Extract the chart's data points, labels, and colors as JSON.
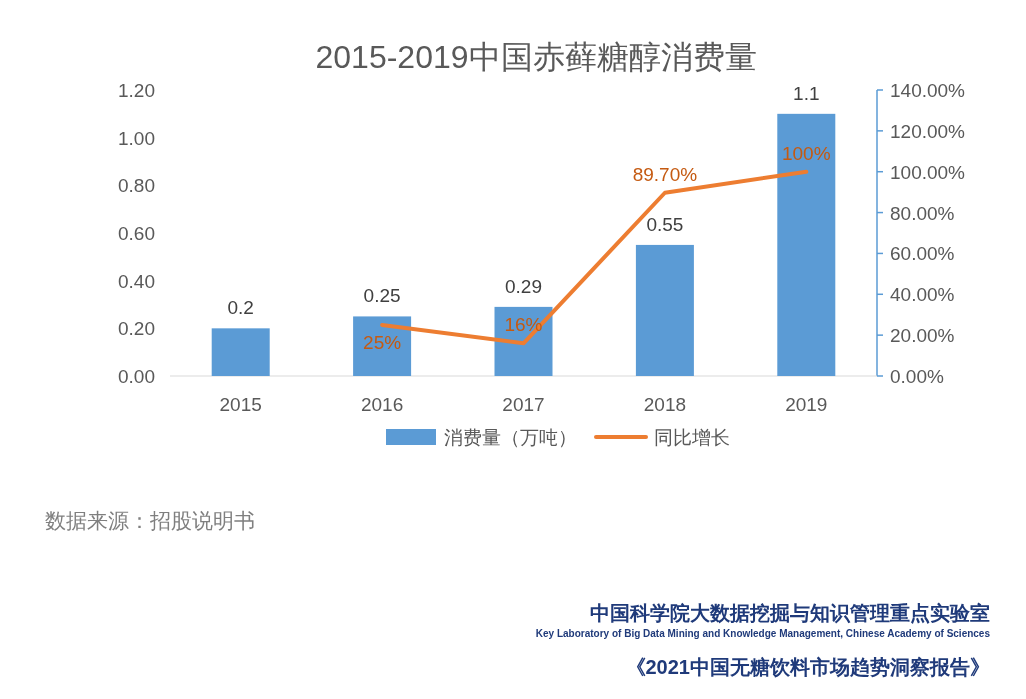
{
  "chart_data": {
    "type": "bar",
    "title": "2015-2019中国赤藓糖醇消费量",
    "categories": [
      "2015",
      "2016",
      "2017",
      "2018",
      "2019"
    ],
    "series": [
      {
        "name": "消费量（万吨）",
        "color": "#5b9bd5",
        "values": [
          0.2,
          0.25,
          0.29,
          0.55,
          1.1
        ],
        "value_labels": [
          "0.2",
          "0.25",
          "0.29",
          "0.55",
          "1.1"
        ]
      },
      {
        "name": "同比增长",
        "type": "line",
        "axis": "y2",
        "color": "#ed7d31",
        "values": [
          null,
          25,
          16,
          89.7,
          100
        ],
        "value_labels": [
          null,
          "25%",
          "16%",
          "89.70%",
          "100%"
        ]
      }
    ],
    "ylim": [
      0,
      1.2
    ],
    "yticks": [
      {
        "value": 0,
        "label": "0.00"
      },
      {
        "value": 0.2,
        "label": "0.20"
      },
      {
        "value": 0.4,
        "label": "0.40"
      },
      {
        "value": 0.6,
        "label": "0.60"
      },
      {
        "value": 0.8,
        "label": "0.80"
      },
      {
        "value": 1.0,
        "label": "1.00"
      },
      {
        "value": 1.2,
        "label": "1.20"
      }
    ],
    "y2lim": [
      0,
      140
    ],
    "y2ticks": [
      {
        "value": 0,
        "label": "0.00%"
      },
      {
        "value": 20,
        "label": "20.00%"
      },
      {
        "value": 40,
        "label": "40.00%"
      },
      {
        "value": 60,
        "label": "60.00%"
      },
      {
        "value": 80,
        "label": "80.00%"
      },
      {
        "value": 100,
        "label": "100.00%"
      },
      {
        "value": 120,
        "label": "120.00%"
      },
      {
        "value": 140,
        "label": "140.00%"
      }
    ],
    "legend": "bottom",
    "grid": false,
    "annotations": [
      "数据来源：招股说明书",
      "中国科学院大数据挖掘与知识管理重点实验室",
      "Key Laboratory of Big Data Mining and Knowledge Management, Chinese Academy of Sciences",
      "《2021中国无糖饮料市场趋势洞察报告》"
    ]
  }
}
